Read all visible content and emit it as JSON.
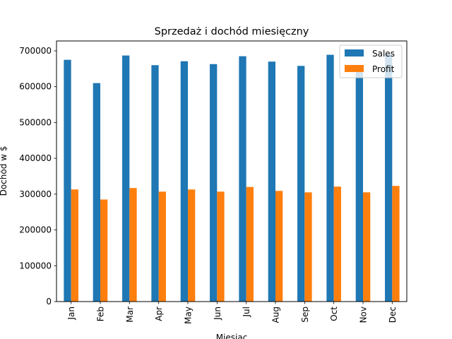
{
  "chart_data": {
    "type": "bar",
    "title": "Sprzedaż i dochód miesięczny",
    "xlabel": "Miesiąc",
    "ylabel": "Dochód w $",
    "categories": [
      "Jan",
      "Feb",
      "Mar",
      "Apr",
      "May",
      "Jun",
      "Jul",
      "Aug",
      "Sep",
      "Oct",
      "Nov",
      "Dec"
    ],
    "series": [
      {
        "name": "Sales",
        "color": "#1f77b4",
        "values": [
          675000,
          610000,
          687000,
          660000,
          671000,
          663000,
          685000,
          670000,
          658000,
          689000,
          655000,
          690000
        ]
      },
      {
        "name": "Profit",
        "color": "#ff7f0e",
        "values": [
          313000,
          285000,
          317000,
          307000,
          313000,
          307000,
          320000,
          309000,
          305000,
          321000,
          305000,
          323000
        ]
      }
    ],
    "ylim": [
      0,
      700000
    ],
    "yticks": [
      "0",
      "100000",
      "200000",
      "300000",
      "400000",
      "500000",
      "600000",
      "700000"
    ],
    "grid": false,
    "legend_position": "top-right"
  }
}
